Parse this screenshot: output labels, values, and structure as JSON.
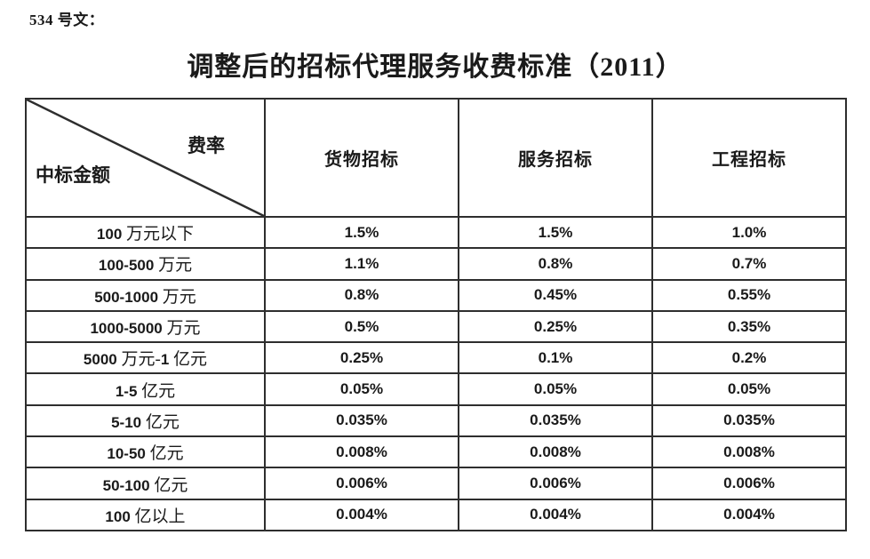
{
  "doc_number": "534 号文：",
  "title": "调整后的招标代理服务收费标准（2011）",
  "colors": {
    "text": "#1a1a1a",
    "border": "#2e2e2e",
    "background": "#ffffff"
  },
  "table": {
    "corner": {
      "top_right_label": "费率",
      "bottom_left_label": "中标金额"
    },
    "columns": [
      "货物招标",
      "服务招标",
      "工程招标"
    ],
    "rows": [
      {
        "label": "100 万元以下",
        "values": [
          "1.5%",
          "1.5%",
          "1.0%"
        ]
      },
      {
        "label": "100-500 万元",
        "values": [
          "1.1%",
          "0.8%",
          "0.7%"
        ]
      },
      {
        "label": "500-1000 万元",
        "values": [
          "0.8%",
          "0.45%",
          "0.55%"
        ]
      },
      {
        "label": "1000-5000 万元",
        "values": [
          "0.5%",
          "0.25%",
          "0.35%"
        ]
      },
      {
        "label": "5000 万元-1 亿元",
        "values": [
          "0.25%",
          "0.1%",
          "0.2%"
        ]
      },
      {
        "label": "1-5 亿元",
        "values": [
          "0.05%",
          "0.05%",
          "0.05%"
        ]
      },
      {
        "label": "5-10 亿元",
        "values": [
          "0.035%",
          "0.035%",
          "0.035%"
        ]
      },
      {
        "label": "10-50 亿元",
        "values": [
          "0.008%",
          "0.008%",
          "0.008%"
        ]
      },
      {
        "label": "50-100 亿元",
        "values": [
          "0.006%",
          "0.006%",
          "0.006%"
        ]
      },
      {
        "label": "100 亿以上",
        "values": [
          "0.004%",
          "0.004%",
          "0.004%"
        ]
      }
    ]
  }
}
